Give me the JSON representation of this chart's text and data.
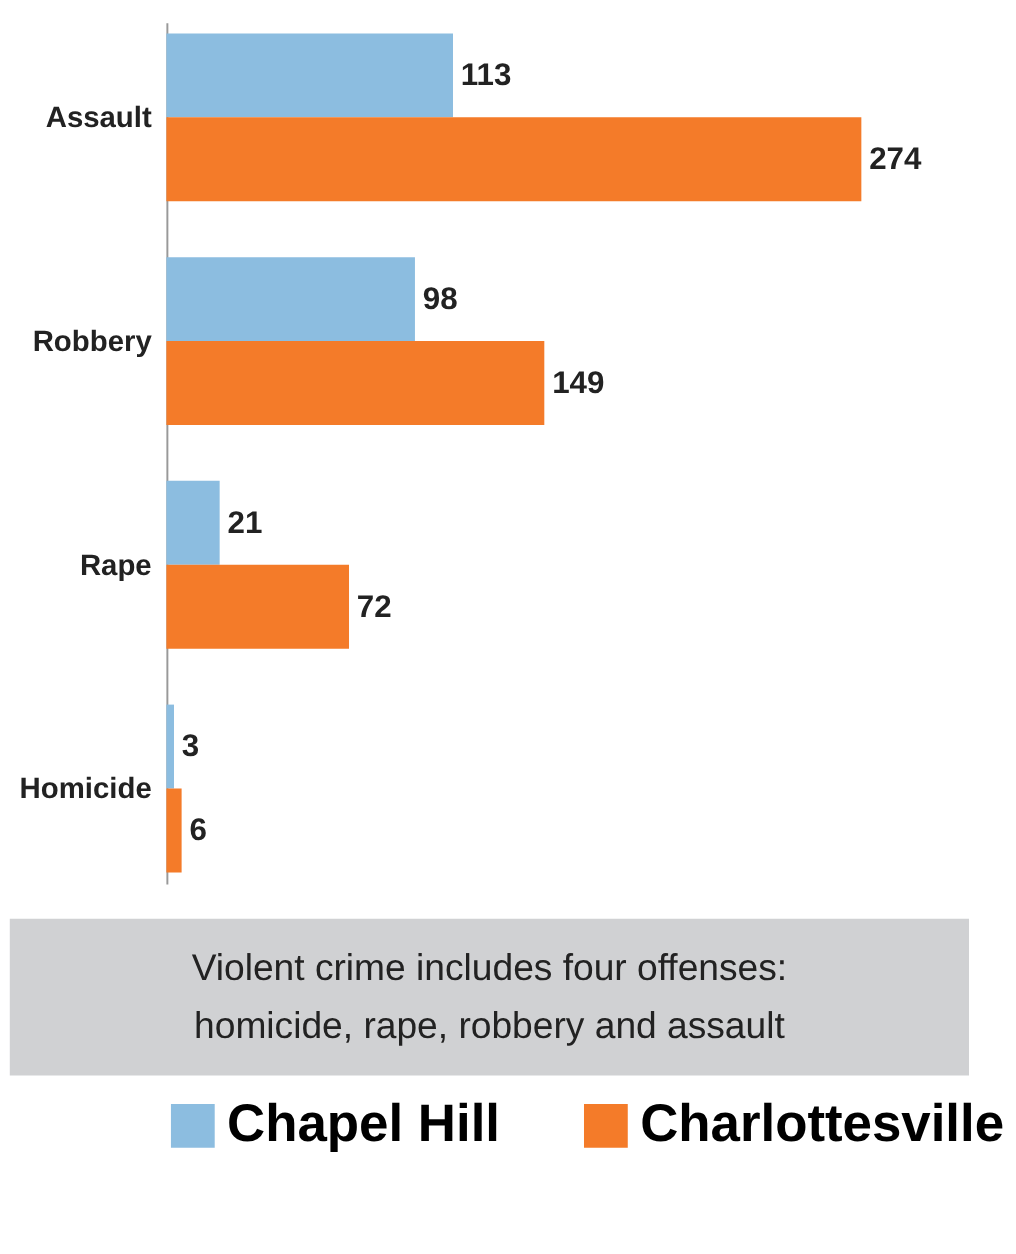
{
  "chart_data": {
    "type": "bar",
    "orientation": "horizontal",
    "categories": [
      "Assault",
      "Robbery",
      "Rape",
      "Homicide"
    ],
    "series": [
      {
        "name": "Chapel Hill",
        "color": "#8cbde0",
        "values": [
          113,
          98,
          21,
          3
        ]
      },
      {
        "name": "Charlottesville",
        "color": "#f47b29",
        "values": [
          274,
          149,
          72,
          6
        ]
      }
    ],
    "data_labels": true,
    "grid": false,
    "legend": "bottom",
    "annotations": [
      "Violent crime includes four offenses:",
      "homicide, rape, robbery and assault"
    ]
  }
}
